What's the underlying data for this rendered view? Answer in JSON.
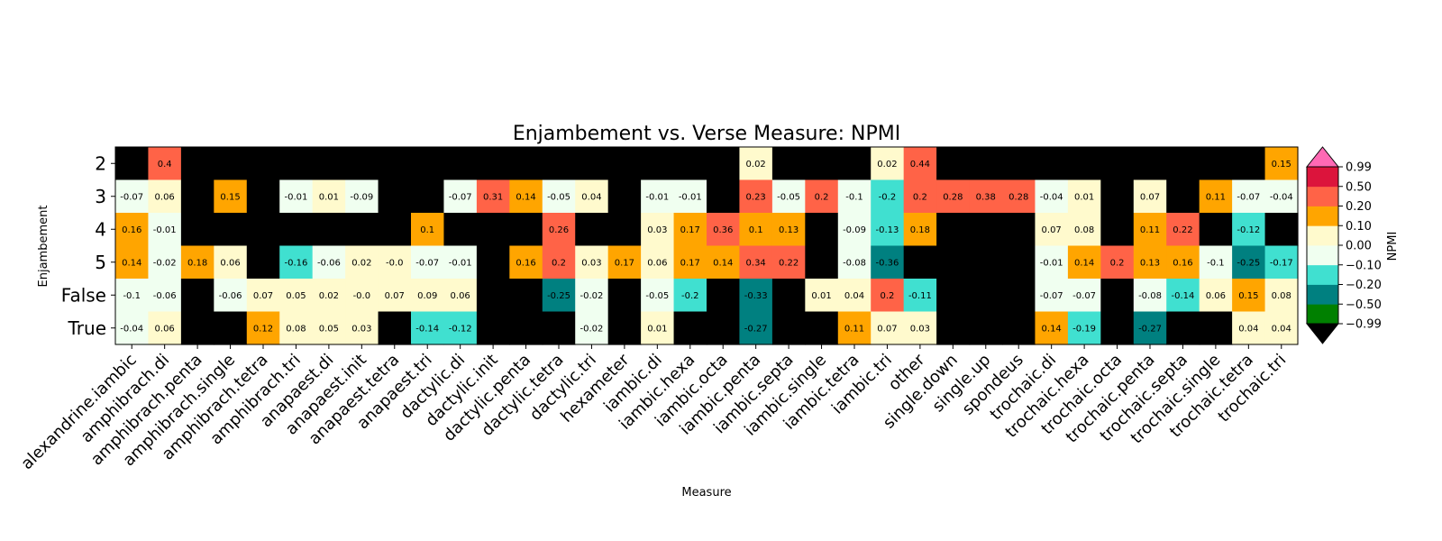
{
  "chart_data": {
    "type": "heatmap",
    "title": "Enjambement vs. Verse Measure: NPMI",
    "xlabel": "Measure",
    "ylabel": "Enjambement",
    "colorbar_label": "NPMI",
    "x": [
      "alexandrine.iambic",
      "amphibrach.di",
      "amphibrach.penta",
      "amphibrach.single",
      "amphibrach.tetra",
      "amphibrach.tri",
      "anapaest.di",
      "anapaest.init",
      "anapaest.tetra",
      "anapaest.tri",
      "dactylic.di",
      "dactylic.init",
      "dactylic.penta",
      "dactylic.tetra",
      "dactylic.tri",
      "hexameter",
      "iambic.di",
      "iambic.hexa",
      "iambic.octa",
      "iambic.penta",
      "iambic.septa",
      "iambic.single",
      "iambic.tetra",
      "iambic.tri",
      "other",
      "single.down",
      "single.up",
      "spondeus",
      "trochaic.di",
      "trochaic.hexa",
      "trochaic.octa",
      "trochaic.penta",
      "trochaic.septa",
      "trochaic.single",
      "trochaic.tetra",
      "trochaic.tri"
    ],
    "y": [
      "2",
      "3",
      "4",
      "5",
      "False",
      "True"
    ],
    "values": [
      [
        null,
        "0.4",
        null,
        null,
        null,
        null,
        null,
        null,
        null,
        null,
        null,
        null,
        null,
        null,
        null,
        null,
        null,
        null,
        null,
        "0.02",
        null,
        null,
        null,
        "0.02",
        "0.44",
        null,
        null,
        null,
        null,
        null,
        null,
        null,
        null,
        null,
        null,
        "0.15"
      ],
      [
        "-0.07",
        "0.06",
        null,
        "0.15",
        null,
        "-0.01",
        "0.01",
        "-0.09",
        null,
        null,
        "-0.07",
        "0.31",
        "0.14",
        "-0.05",
        "0.04",
        null,
        "-0.01",
        "-0.01",
        null,
        "0.23",
        "-0.05",
        "0.2",
        "-0.1",
        "-0.2",
        "0.2",
        "0.28",
        "0.38",
        "0.28",
        "-0.04",
        "0.01",
        null,
        "0.07",
        null,
        "0.11",
        "-0.07",
        "-0.04"
      ],
      [
        "0.16",
        "-0.01",
        null,
        null,
        null,
        null,
        null,
        null,
        null,
        "0.1",
        null,
        null,
        null,
        "0.26",
        null,
        null,
        "0.03",
        "0.17",
        "0.36",
        "0.1",
        "0.13",
        null,
        "-0.09",
        "-0.13",
        "0.18",
        null,
        null,
        null,
        "0.07",
        "0.08",
        null,
        "0.11",
        "0.22",
        null,
        "-0.12",
        null
      ],
      [
        "0.14",
        "-0.02",
        "0.18",
        "0.06",
        null,
        "-0.16",
        "-0.06",
        "0.02",
        "-0.0",
        "-0.07",
        "-0.01",
        null,
        "0.16",
        "0.2",
        "0.03",
        "0.17",
        "0.06",
        "0.17",
        "0.14",
        "0.34",
        "0.22",
        null,
        "-0.08",
        "-0.36",
        null,
        null,
        null,
        null,
        "-0.01",
        "0.14",
        "0.2",
        "0.13",
        "0.16",
        "-0.1",
        "-0.25",
        "-0.17"
      ],
      [
        "-0.1",
        "-0.06",
        null,
        "-0.06",
        "0.07",
        "0.05",
        "0.02",
        "-0.0",
        "0.07",
        "0.09",
        "0.06",
        null,
        null,
        "-0.25",
        "-0.02",
        null,
        "-0.05",
        "-0.2",
        null,
        "-0.33",
        null,
        "0.01",
        "0.04",
        "0.2",
        "-0.11",
        null,
        null,
        null,
        "-0.07",
        "-0.07",
        null,
        "-0.08",
        "-0.14",
        "0.06",
        "0.15",
        "0.08"
      ],
      [
        "-0.04",
        "0.06",
        null,
        null,
        "0.12",
        "0.08",
        "0.05",
        "0.03",
        null,
        "-0.14",
        "-0.12",
        null,
        null,
        null,
        "-0.02",
        null,
        "0.01",
        null,
        null,
        "-0.27",
        null,
        null,
        "0.11",
        "0.07",
        "0.03",
        null,
        null,
        null,
        "0.14",
        "-0.19",
        null,
        "-0.27",
        null,
        null,
        "0.04",
        "0.04"
      ]
    ],
    "colorbar": {
      "ticks": [
        "−0.99",
        "−0.50",
        "−0.20",
        "−0.10",
        "0.00",
        "0.10",
        "0.20",
        "0.50",
        "0.99"
      ],
      "bounds": [
        -0.99,
        -0.5,
        -0.2,
        -0.1,
        0,
        0.1,
        0.2,
        0.5,
        0.99
      ],
      "colors": [
        "#008000",
        "#008080",
        "#40e0d0",
        "#f0fff0",
        "#fffacd",
        "#ffa500",
        "#ff6347",
        "#dc143c"
      ],
      "under_color": "#000000",
      "over_color": "#ff69b4"
    },
    "missing_color": "#000000"
  }
}
